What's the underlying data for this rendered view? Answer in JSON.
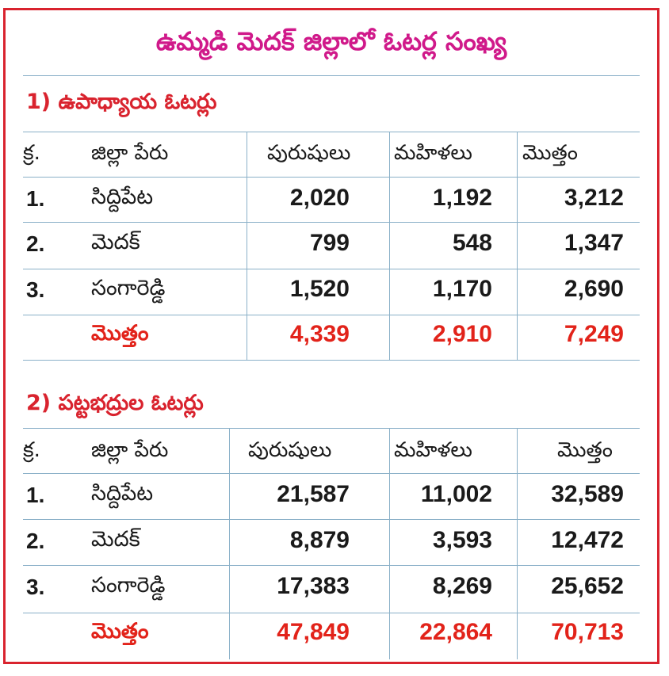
{
  "title": "ఉమ్మడి మెదక్‌ జిల్లాలో ఓటర్ల సంఖ్య",
  "colors": {
    "frame": "#d9232e",
    "title": "#d0198a",
    "section": "#e2231a",
    "rules": "#8ab0c8",
    "totals": "#e2231a"
  },
  "columns": {
    "sno": "క్ర.",
    "district": "జిల్లా పేరు",
    "men": "పురుషులు",
    "women": "మహిళలు",
    "total": "మొత్తం"
  },
  "sections": [
    {
      "heading": "1) ఉపాధ్యాయ ఓటర్లు",
      "rows": [
        {
          "sno": "1.",
          "district": "సిద్దిపేట",
          "men": "2,020",
          "women": "1,192",
          "total": "3,212"
        },
        {
          "sno": "2.",
          "district": "మెదక్‌",
          "men": "799",
          "women": "548",
          "total": "1,347"
        },
        {
          "sno": "3.",
          "district": "సంగారెడ్డి",
          "men": "1,520",
          "women": "1,170",
          "total": "2,690"
        }
      ],
      "total_row": {
        "label": "మొత్తం",
        "men": "4,339",
        "women": "2,910",
        "total": "7,249"
      }
    },
    {
      "heading": "2) పట్టభద్రుల ఓటర్లు",
      "rows": [
        {
          "sno": "1.",
          "district": "సిద్దిపేట",
          "men": "21,587",
          "women": "11,002",
          "total": "32,589"
        },
        {
          "sno": "2.",
          "district": "మెదక్‌",
          "men": "8,879",
          "women": "3,593",
          "total": "12,472"
        },
        {
          "sno": "3.",
          "district": "సంగారెడ్డి",
          "men": "17,383",
          "women": "8,269",
          "total": "25,652"
        }
      ],
      "total_row": {
        "label": "మొత్తం",
        "men": "47,849",
        "women": "22,864",
        "total": "70,713"
      }
    }
  ]
}
